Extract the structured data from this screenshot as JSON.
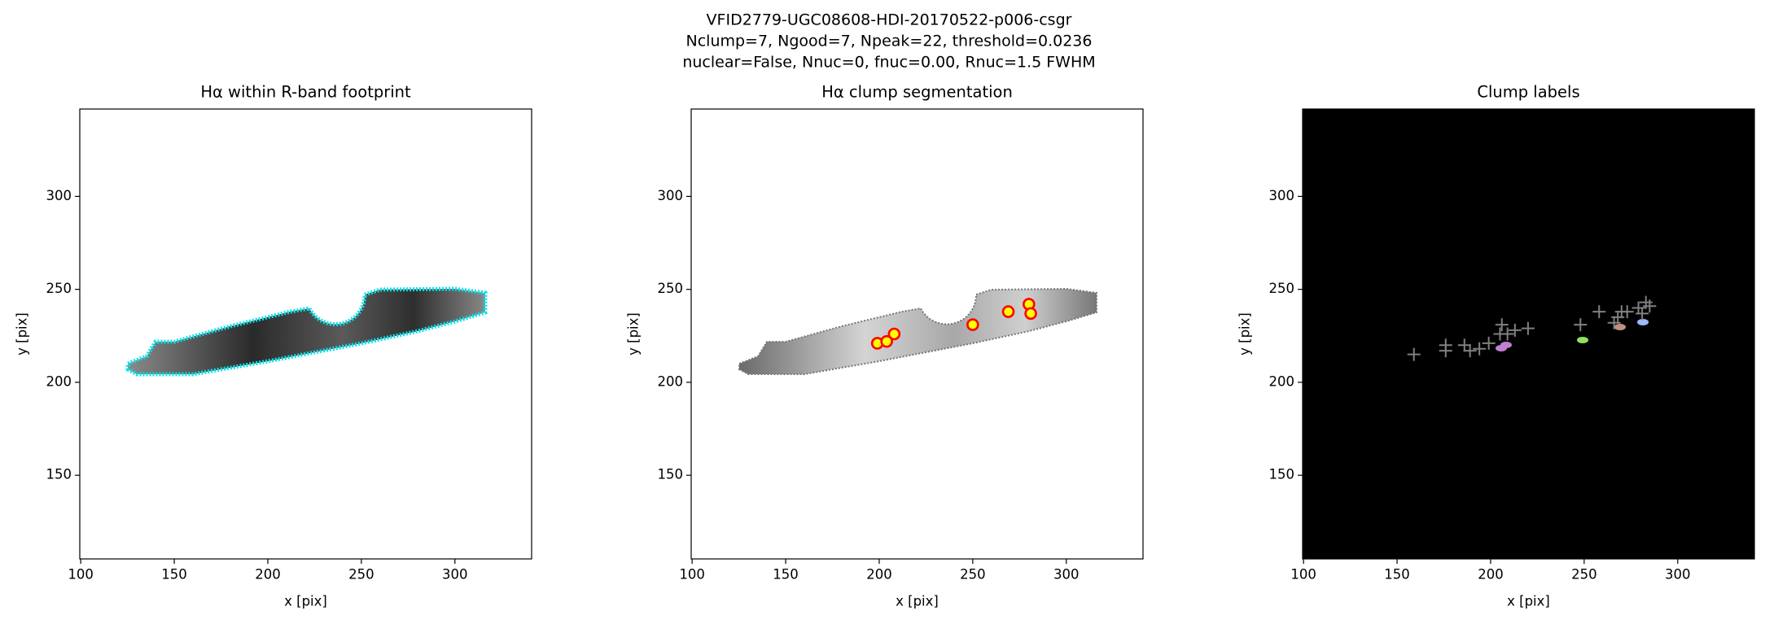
{
  "figure_title": [
    "VFID2779-UGC08608-HDI-20170522-p006-csgr",
    "Nclump=7, Ngood=7, Npeak=22, threshold=0.0236",
    "nuclear=False, Nnuc=0, fnuc=0.00, Rnuc=1.5 FWHM"
  ],
  "chart_data": [
    {
      "type": "image",
      "title": "Hα within R-band footprint",
      "xlabel": "x [pix]",
      "ylabel": "y [pix]",
      "xlim": [
        99.5,
        341
      ],
      "ylim": [
        105,
        347
      ],
      "xticks": [
        100,
        150,
        200,
        250,
        300
      ],
      "yticks": [
        150,
        200,
        250,
        300
      ],
      "background": "#ffffff"
    },
    {
      "type": "scatter",
      "title": "Hα clump segmentation",
      "xlabel": "x [pix]",
      "ylabel": "y [pix]",
      "xlim": [
        99.5,
        341
      ],
      "ylim": [
        105,
        347
      ],
      "xticks": [
        100,
        150,
        200,
        250,
        300
      ],
      "yticks": [
        150,
        200,
        250,
        300
      ],
      "background": "#ffffff",
      "marker": "circle",
      "series": [
        {
          "name": "clumps",
          "color": "#ff0000",
          "x": [
            199,
            204,
            208,
            250,
            269,
            280,
            281
          ],
          "values": [
            221,
            222,
            226,
            231,
            238,
            242,
            237
          ]
        }
      ]
    },
    {
      "type": "scatter",
      "title": "Clump labels",
      "xlabel": "x [pix]",
      "ylabel": "y [pix]",
      "xlim": [
        99.5,
        341
      ],
      "ylim": [
        105,
        347
      ],
      "xticks": [
        100,
        150,
        200,
        250,
        300
      ],
      "yticks": [
        150,
        200,
        250,
        300
      ],
      "background": "#000000",
      "marker": "plus",
      "series": [
        {
          "name": "peaks",
          "color": "#808080",
          "x": [
            159,
            176,
            176,
            186,
            189,
            194,
            199,
            205,
            206,
            209,
            213,
            220,
            248,
            258,
            266,
            268,
            270,
            273,
            279,
            281,
            283,
            285
          ],
          "values": [
            215,
            217,
            220,
            220,
            217,
            218,
            221,
            226,
            231,
            226,
            228,
            229,
            231,
            238,
            232,
            235,
            238,
            238,
            240,
            237,
            243,
            241
          ]
        }
      ]
    }
  ]
}
